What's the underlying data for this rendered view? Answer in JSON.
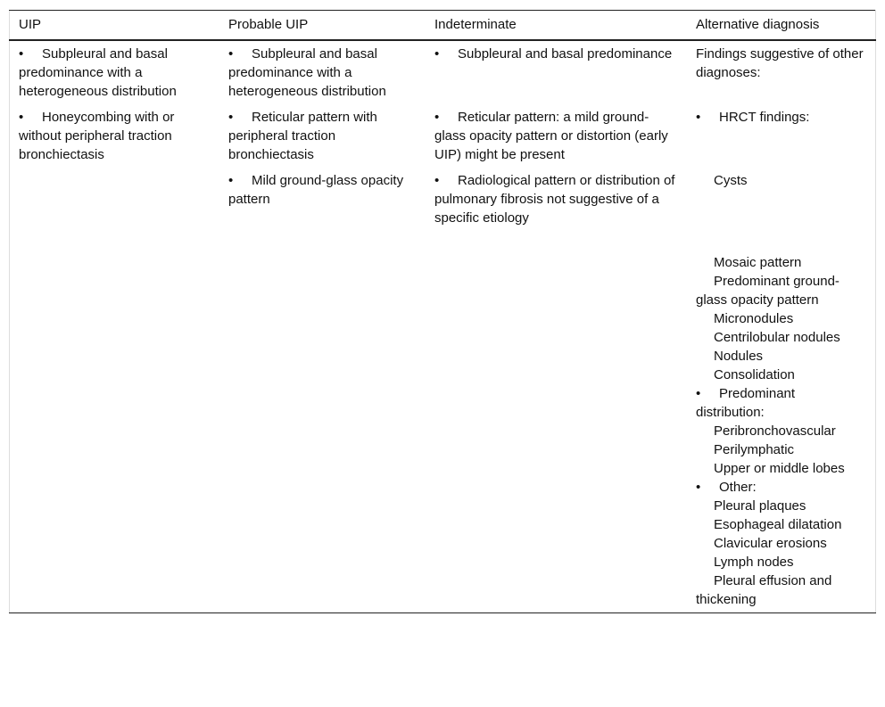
{
  "headers": [
    "UIP",
    "Probable UIP",
    "Indeterminate",
    "Alternative diagnosis"
  ],
  "rows": [
    [
      "Subpleural and basal predominance with a heterogeneous distribution",
      "Subpleural and basal predominance with a heterogeneous distribution",
      "Subpleural and basal predominance",
      "Findings suggestive of other diagnoses:"
    ],
    [
      "Honeycombing with or without peripheral traction bronchiectasis",
      "Reticular pattern with peripheral traction bronchiectasis",
      "Reticular pattern: a mild ground-glass opacity pattern or distortion (early UIP) might be present",
      "HRCT findings:"
    ],
    [
      "",
      "Mild ground-glass opacity pattern",
      "Radiological pattern or distribution of pulmonary fibrosis not suggestive of a specific etiology",
      "Cysts"
    ]
  ],
  "alternative_more": {
    "hrct": [
      "Mosaic pattern",
      "Predominant ground-glass opacity pattern",
      "Micronodules",
      "Centrilobular nodules",
      "Nodules",
      "Consolidation"
    ],
    "distribution_label": "Predominant distribution:",
    "distribution": [
      "Peribronchovascular",
      "Perilymphatic",
      "Upper or middle lobes"
    ],
    "other_label": "Other:",
    "other": [
      "Pleural plaques",
      "Esophageal dilatation",
      "Clavicular erosions",
      "Lymph nodes",
      "Pleural effusion and thickening"
    ]
  },
  "bullet": "•"
}
